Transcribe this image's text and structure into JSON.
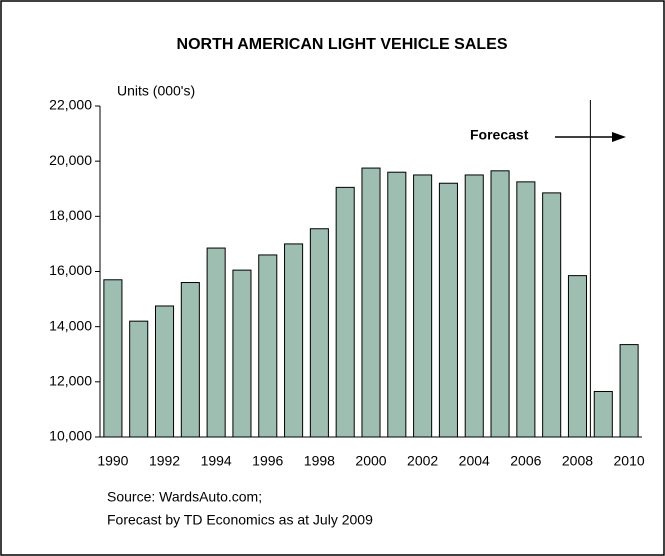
{
  "chart_data": {
    "type": "bar",
    "title": "NORTH AMERICAN LIGHT VEHICLE SALES",
    "y_label": "Units (000's)",
    "categories": [
      "1990",
      null,
      "1992",
      null,
      "1994",
      null,
      "1996",
      null,
      "1998",
      null,
      "2000",
      null,
      "2002",
      null,
      "2004",
      null,
      "2006",
      null,
      "2008",
      null,
      "2010"
    ],
    "values": [
      15700,
      14200,
      14750,
      15600,
      16850,
      16050,
      16600,
      17000,
      17550,
      19050,
      19750,
      19600,
      19500,
      19200,
      19500,
      19650,
      19250,
      18850,
      15850,
      11650,
      13350
    ],
    "color": "#9fbeb2",
    "ylim": [
      10000,
      22000
    ],
    "yticks": [
      {
        "value": 10000,
        "label": "10,000"
      },
      {
        "value": 12000,
        "label": "12,000"
      },
      {
        "value": 14000,
        "label": "14,000"
      },
      {
        "value": 16000,
        "label": "16,000"
      },
      {
        "value": 18000,
        "label": "18,000"
      },
      {
        "value": 20000,
        "label": "20,000"
      },
      {
        "value": 22000,
        "label": "22,000"
      }
    ],
    "annotation": "Forecast",
    "source": [
      "Source: WardsAuto.com;",
      "Forecast by TD Economics as at July 2009"
    ]
  }
}
